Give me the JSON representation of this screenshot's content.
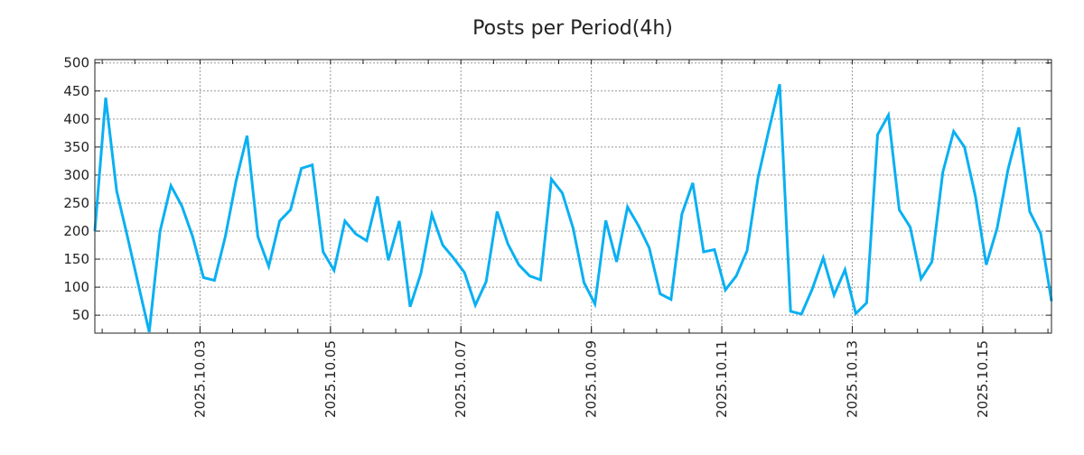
{
  "chart_data": {
    "type": "line",
    "title": "Posts per Period(4h)",
    "xlabel": "",
    "ylabel": "",
    "x_unit": "hours since 2025.10.01 00:00",
    "x_start": 9.3,
    "x_step": 4,
    "xlim": [
      9.3,
      361.3
    ],
    "ylim": [
      18,
      506
    ],
    "grid": true,
    "line_color": "#0ab0f2",
    "x_ticks": [
      {
        "value": 48,
        "label": "2025.10.03"
      },
      {
        "value": 96,
        "label": "2025.10.05"
      },
      {
        "value": 144,
        "label": "2025.10.07"
      },
      {
        "value": 192,
        "label": "2025.10.09"
      },
      {
        "value": 240,
        "label": "2025.10.11"
      },
      {
        "value": 288,
        "label": "2025.10.13"
      },
      {
        "value": 336,
        "label": "2025.10.15"
      }
    ],
    "y_ticks": [
      50,
      100,
      150,
      200,
      250,
      300,
      350,
      400,
      450,
      500
    ],
    "series": [
      {
        "name": "posts",
        "values": [
          200,
          438,
          272,
          190,
          105,
          20,
          200,
          281,
          245,
          190,
          117,
          112,
          190,
          290,
          370,
          190,
          137,
          218,
          238,
          312,
          318,
          163,
          130,
          218,
          195,
          183,
          262,
          148,
          218,
          65,
          125,
          230,
          175,
          152,
          126,
          68,
          110,
          235,
          177,
          140,
          120,
          113,
          293,
          268,
          205,
          108,
          70,
          219,
          145,
          243,
          210,
          170,
          88,
          78,
          230,
          286,
          163,
          167,
          95,
          120,
          165,
          295,
          380,
          462,
          57,
          52,
          97,
          152,
          86,
          131,
          53,
          72,
          372,
          407,
          238,
          207,
          115,
          145,
          305,
          378,
          350,
          262,
          140,
          205,
          310,
          385,
          235,
          196,
          75
        ]
      }
    ]
  }
}
